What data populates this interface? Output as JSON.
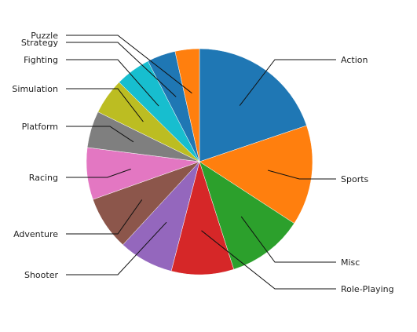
{
  "chart_data": {
    "type": "pie",
    "title": "",
    "categories": [
      "Action",
      "Sports",
      "Misc",
      "Role-Playing",
      "Shooter",
      "Adventure",
      "Racing",
      "Platform",
      "Simulation",
      "Fighting",
      "Strategy",
      "Puzzle"
    ],
    "values": [
      20.0,
      14.5,
      11.0,
      9.0,
      7.9,
      7.8,
      7.5,
      5.3,
      5.2,
      5.1,
      4.1,
      3.5
    ],
    "colors": [
      "#1f77b4",
      "#ff7f0e",
      "#2ca02c",
      "#d62728",
      "#9467bd",
      "#8c564b",
      "#e377c2",
      "#7f7f7f",
      "#bcbd22",
      "#17becf",
      "#1f77b4",
      "#ff7f0e"
    ],
    "start_angle": "12 o'clock",
    "direction": "clockwise",
    "legend": "none",
    "labels": "outside with leader lines"
  }
}
